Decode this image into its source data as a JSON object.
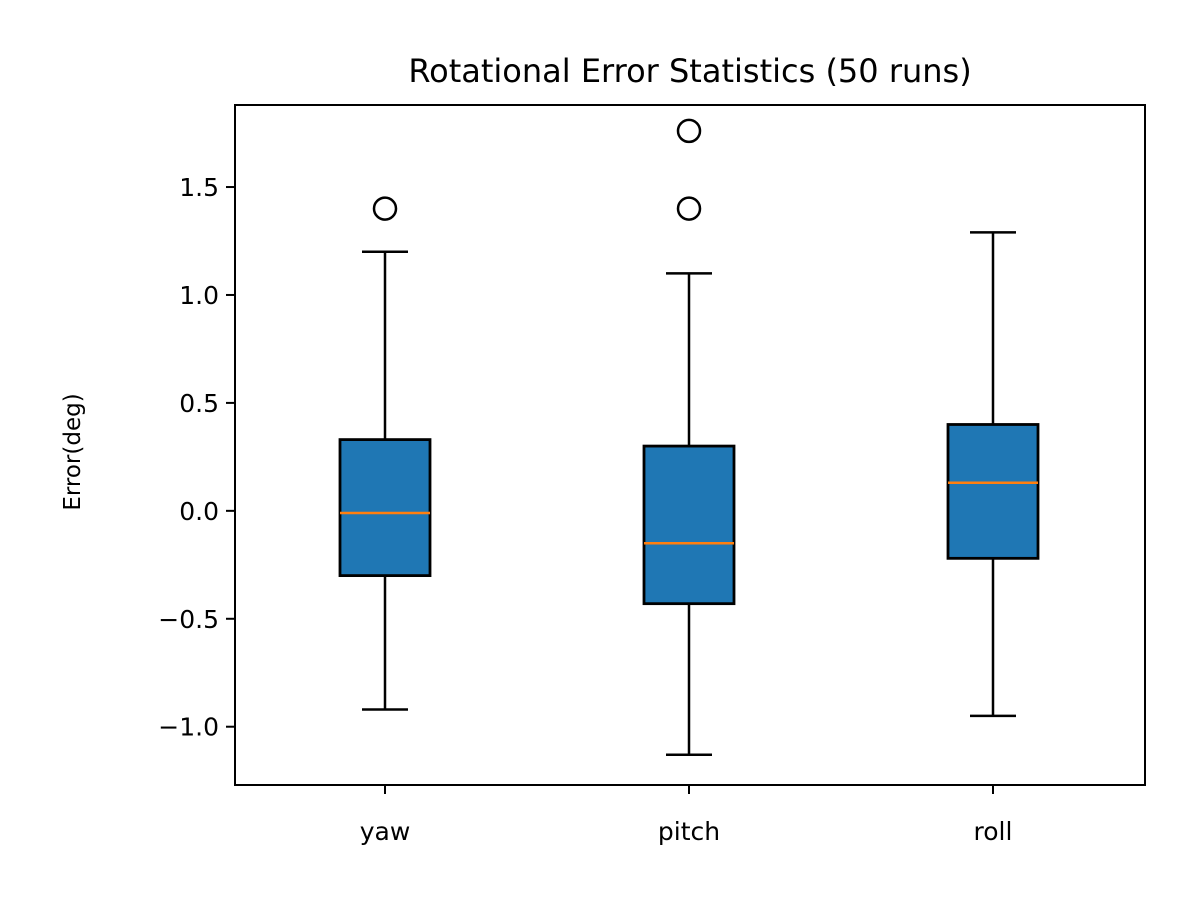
{
  "chart_data": {
    "type": "box",
    "title": "Rotational Error Statistics (50 runs)",
    "xlabel": "",
    "ylabel": "Error(deg)",
    "ylim": [
      -1.27,
      1.88
    ],
    "yticks": [
      {
        "value": 1.5,
        "label": "1.5"
      },
      {
        "value": 1.0,
        "label": "1.0"
      },
      {
        "value": 0.5,
        "label": "0.5"
      },
      {
        "value": 0.0,
        "label": "0.0"
      },
      {
        "value": -0.5,
        "label": "−0.5"
      },
      {
        "value": -1.0,
        "label": "−1.0"
      }
    ],
    "categories": [
      "yaw",
      "pitch",
      "roll"
    ],
    "boxes": [
      {
        "name": "yaw",
        "whisker_low": -0.92,
        "q1": -0.3,
        "median": -0.01,
        "q3": 0.33,
        "whisker_high": 1.2,
        "outliers": [
          1.4
        ]
      },
      {
        "name": "pitch",
        "whisker_low": -1.13,
        "q1": -0.43,
        "median": -0.15,
        "q3": 0.3,
        "whisker_high": 1.1,
        "outliers": [
          1.4,
          1.76
        ]
      },
      {
        "name": "roll",
        "whisker_low": -0.95,
        "q1": -0.22,
        "median": 0.13,
        "q3": 0.4,
        "whisker_high": 1.29,
        "outliers": []
      }
    ],
    "grid": false,
    "colors": {
      "box_fill": "#1f77b4",
      "median": "#ff7f0e",
      "edge": "#000000"
    }
  }
}
